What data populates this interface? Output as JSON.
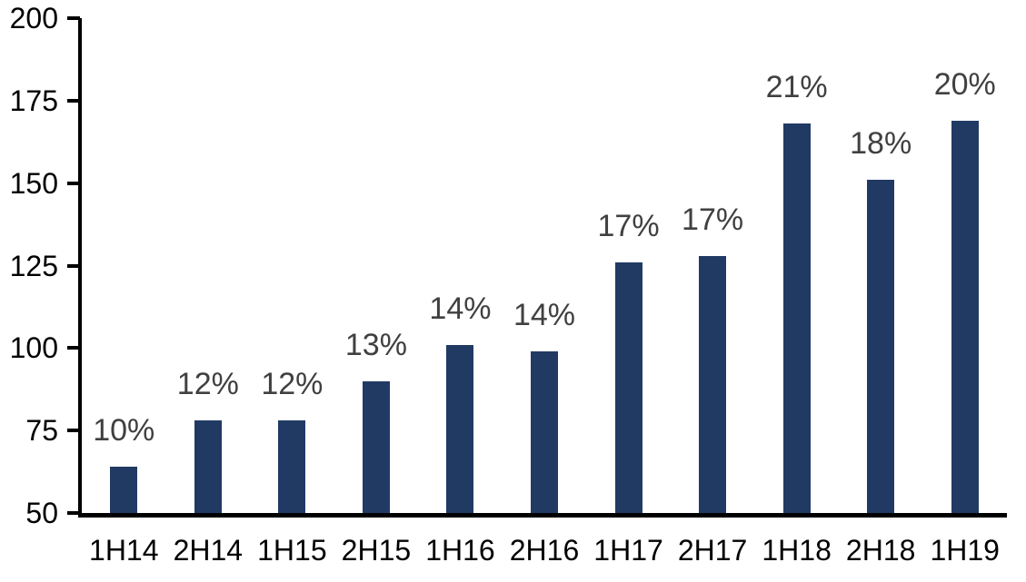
{
  "chart_data": {
    "type": "bar",
    "categories": [
      "1H14",
      "2H14",
      "1H15",
      "2H15",
      "1H16",
      "2H16",
      "1H17",
      "2H17",
      "1H18",
      "2H18",
      "1H19"
    ],
    "series": [
      {
        "name": "bars",
        "values": [
          64,
          78,
          78,
          90,
          101,
          99,
          126,
          128,
          168,
          151,
          169
        ],
        "point_labels": [
          "10%",
          "12%",
          "12%",
          "13%",
          "14%",
          "14%",
          "17%",
          "17%",
          "21%",
          "18%",
          "20%"
        ]
      }
    ],
    "title": "",
    "xlabel": "",
    "ylabel": "",
    "ylim": [
      50,
      200
    ],
    "yticks": [
      50,
      75,
      100,
      125,
      150,
      175,
      200
    ],
    "grid": false,
    "legend_position": "none",
    "colors": {
      "bar": "#203A64",
      "point_label": "#404040",
      "axis": "#000000",
      "tick_label": "#000000",
      "background": "#FFFFFF"
    }
  }
}
